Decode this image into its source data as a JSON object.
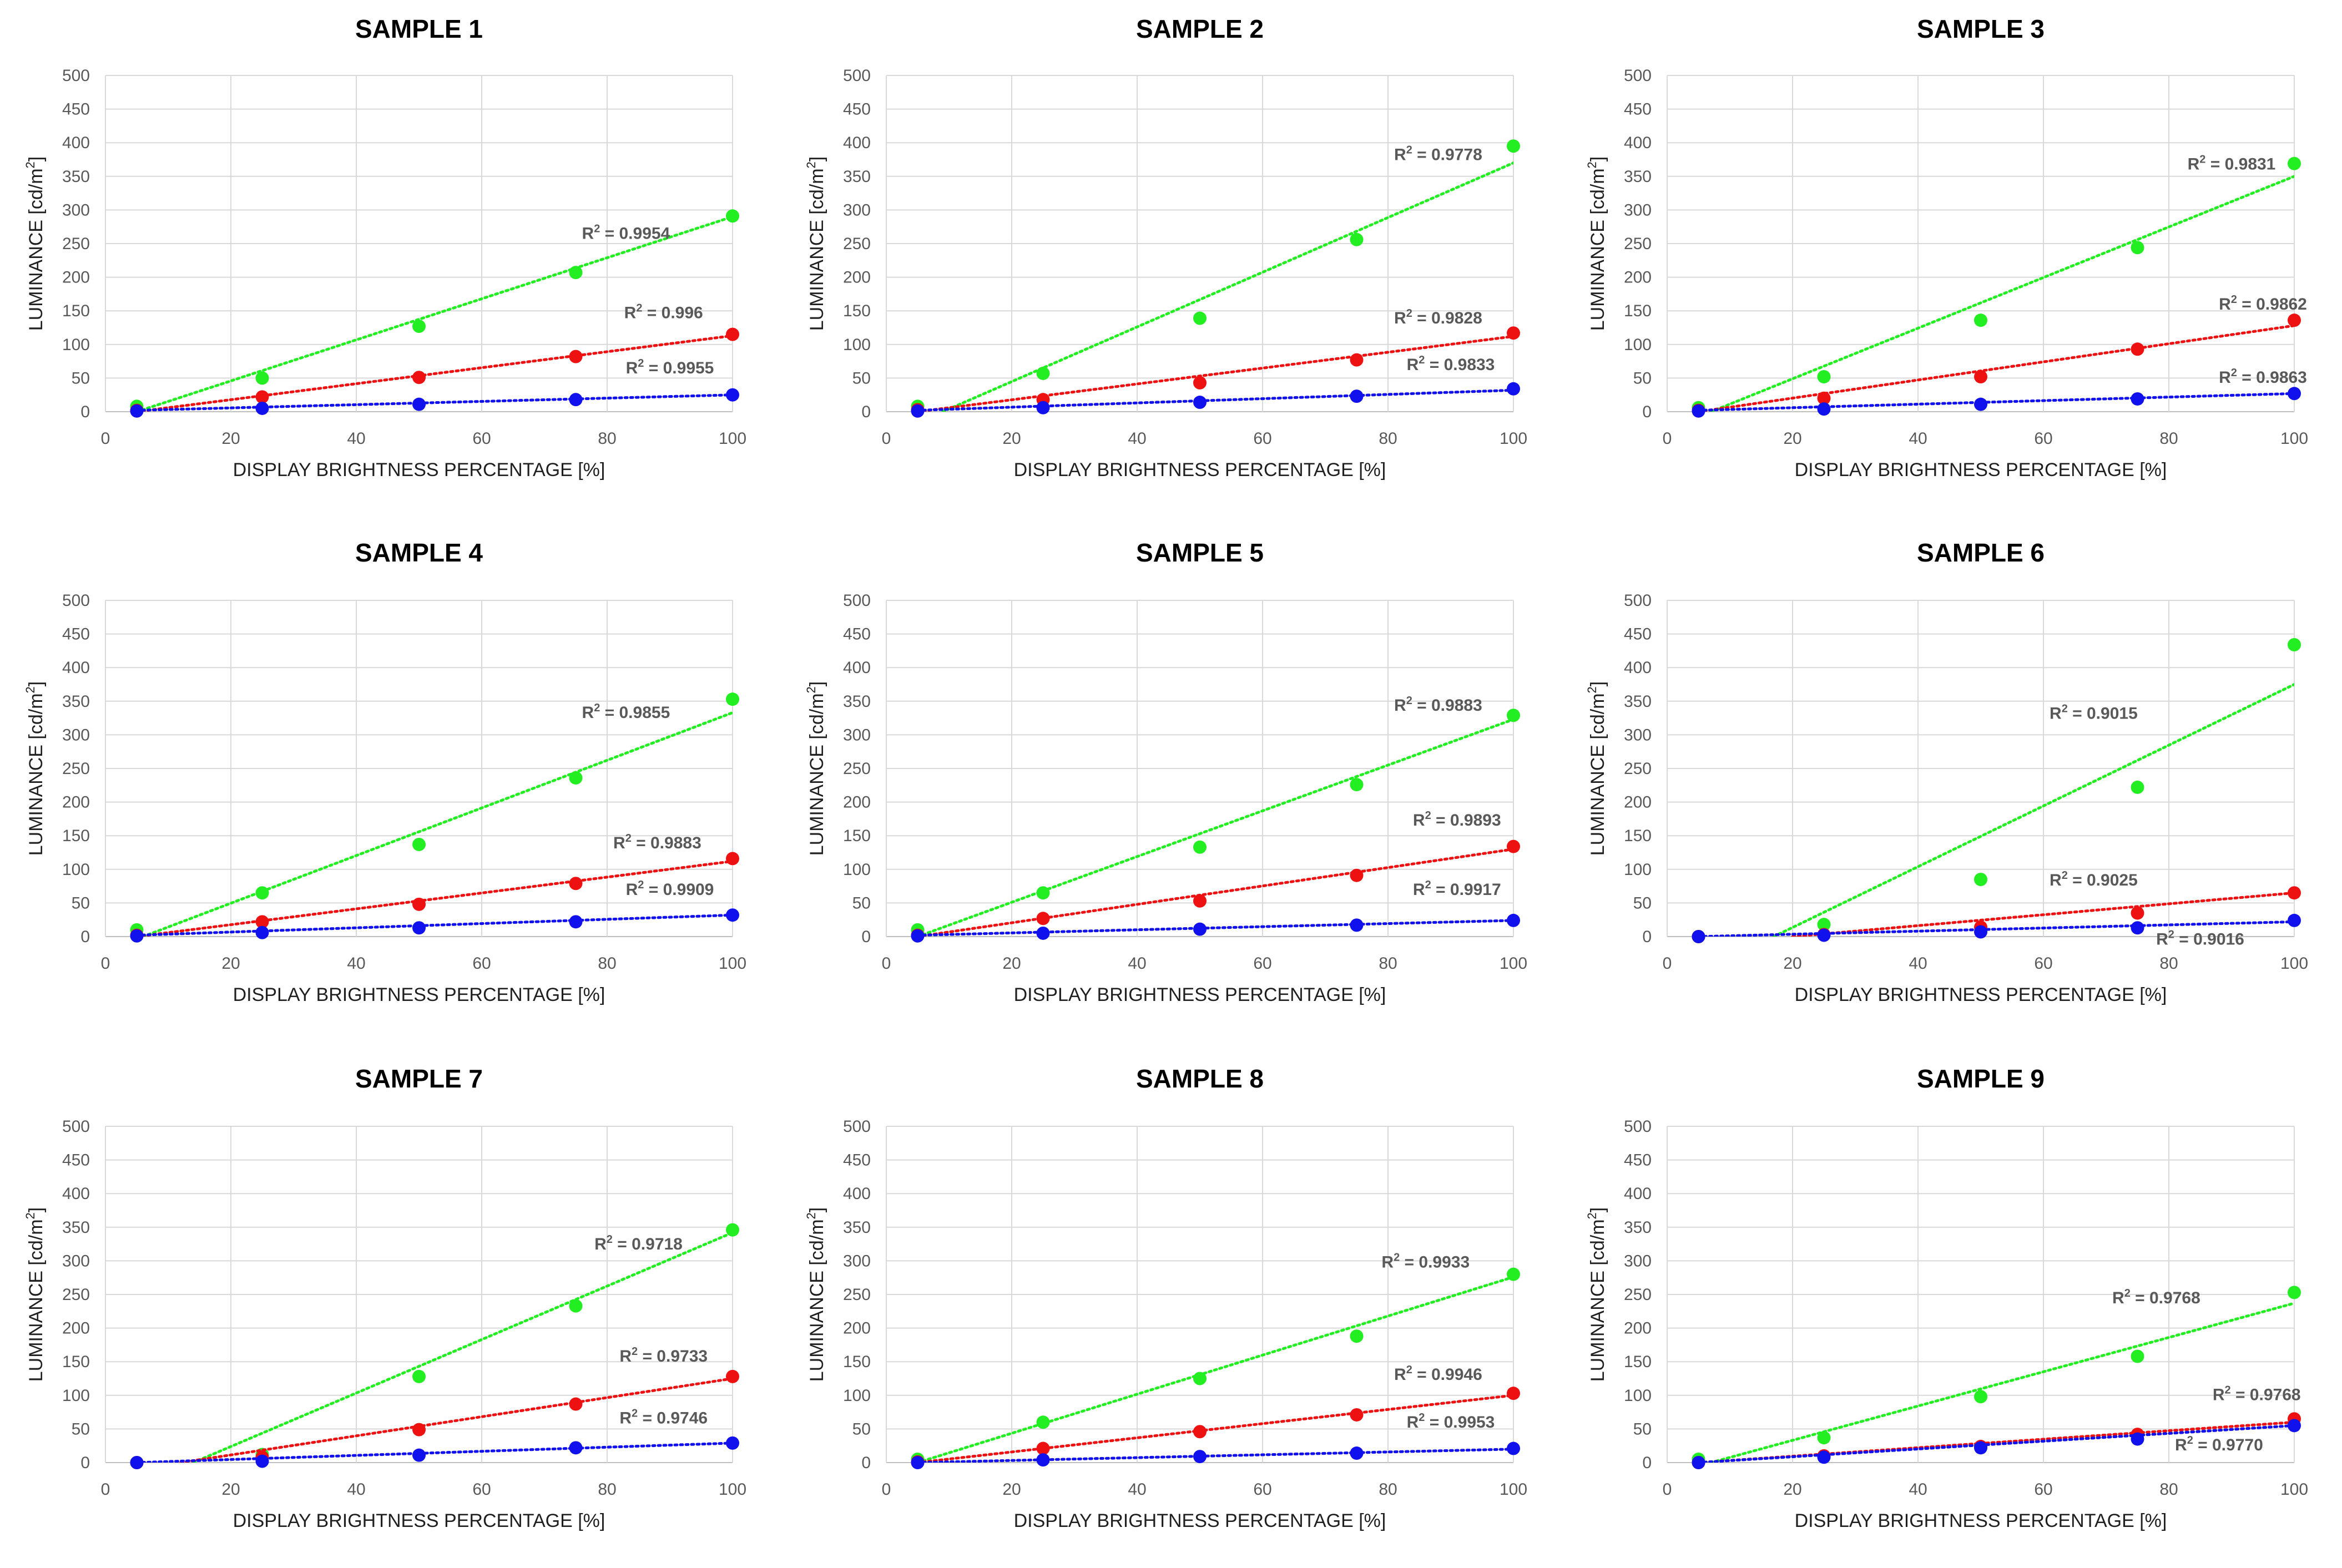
{
  "figure": {
    "xlabel": "DISPLAY BRIGHTNESS PERCENTAGE [%]",
    "ylabel_main": "LUMINANCE [cd/m",
    "ylabel_sup": "2",
    "ylabel_close": "]",
    "r2_prefix": "R",
    "r2_sup": "2",
    "r2_sep": " = ",
    "colors": {
      "green": "#22ee22",
      "red": "#ee1111",
      "blue": "#1111ee",
      "grid": "#d9d9d9"
    }
  },
  "chart_data": [
    {
      "type": "scatter",
      "title": "SAMPLE 1",
      "xlim": [
        0,
        100
      ],
      "ylim": [
        0,
        500
      ],
      "xticks": [
        0,
        20,
        40,
        60,
        80,
        100
      ],
      "yticks": [
        0,
        50,
        100,
        150,
        200,
        250,
        300,
        350,
        400,
        450,
        500
      ],
      "x": [
        5,
        25,
        50,
        75,
        100
      ],
      "series": [
        {
          "name": "green",
          "color": "#22ee22",
          "values": [
            8,
            50,
            127,
            207,
            291
          ],
          "r2": "0.9954",
          "fit": [
            [
              5,
              0
            ],
            [
              100,
              290
            ]
          ],
          "r2_at": [
            83,
            257
          ]
        },
        {
          "name": "red",
          "color": "#ee1111",
          "values": [
            2,
            22,
            51,
            82,
            115
          ],
          "r2": "0.996",
          "fit": [
            [
              5,
              0
            ],
            [
              100,
              113
            ]
          ],
          "r2_at": [
            89,
            139
          ]
        },
        {
          "name": "blue",
          "color": "#1111ee",
          "values": [
            1,
            5,
            11,
            18,
            25
          ],
          "r2": "0.9955",
          "fit": [
            [
              5,
              2
            ],
            [
              100,
              25
            ]
          ],
          "r2_at": [
            90,
            57
          ]
        }
      ]
    },
    {
      "type": "scatter",
      "title": "SAMPLE 2",
      "xlim": [
        0,
        100
      ],
      "ylim": [
        0,
        500
      ],
      "xticks": [
        0,
        20,
        40,
        60,
        80,
        100
      ],
      "yticks": [
        0,
        50,
        100,
        150,
        200,
        250,
        300,
        350,
        400,
        450,
        500
      ],
      "x": [
        5,
        25,
        50,
        75,
        100
      ],
      "series": [
        {
          "name": "green",
          "color": "#22ee22",
          "values": [
            8,
            57,
            139,
            256,
            395
          ],
          "r2": "0.9778",
          "fit": [
            [
              9,
              0
            ],
            [
              100,
              370
            ]
          ],
          "r2_at": [
            88,
            374
          ]
        },
        {
          "name": "red",
          "color": "#ee1111",
          "values": [
            3,
            18,
            43,
            77,
            117
          ],
          "r2": "0.9828",
          "fit": [
            [
              5,
              0
            ],
            [
              100,
              112
            ]
          ],
          "r2_at": [
            88,
            131
          ]
        },
        {
          "name": "blue",
          "color": "#1111ee",
          "values": [
            1,
            6,
            14,
            23,
            34
          ],
          "r2": "0.9833",
          "fit": [
            [
              5,
              2
            ],
            [
              100,
              32
            ]
          ],
          "r2_at": [
            90,
            62
          ]
        }
      ]
    },
    {
      "type": "scatter",
      "title": "SAMPLE 3",
      "xlim": [
        0,
        100
      ],
      "ylim": [
        0,
        500
      ],
      "xticks": [
        0,
        20,
        40,
        60,
        80,
        100
      ],
      "yticks": [
        0,
        50,
        100,
        150,
        200,
        250,
        300,
        350,
        400,
        450,
        500
      ],
      "x": [
        5,
        25,
        50,
        75,
        100
      ],
      "series": [
        {
          "name": "green",
          "color": "#22ee22",
          "values": [
            6,
            52,
            136,
            244,
            369
          ],
          "r2": "0.9831",
          "fit": [
            [
              7,
              0
            ],
            [
              100,
              350
            ]
          ],
          "r2_at": [
            90,
            360
          ]
        },
        {
          "name": "red",
          "color": "#ee1111",
          "values": [
            2,
            20,
            52,
            93,
            136
          ],
          "r2": "0.9862",
          "fit": [
            [
              5,
              0
            ],
            [
              100,
              128
            ]
          ],
          "r2_at": [
            95,
            152
          ]
        },
        {
          "name": "blue",
          "color": "#1111ee",
          "values": [
            1,
            4,
            11,
            19,
            27
          ],
          "r2": "0.9863",
          "fit": [
            [
              5,
              2
            ],
            [
              100,
              27
            ]
          ],
          "r2_at": [
            95,
            43
          ]
        }
      ]
    },
    {
      "type": "scatter",
      "title": "SAMPLE 4",
      "xlim": [
        0,
        100
      ],
      "ylim": [
        0,
        500
      ],
      "xticks": [
        0,
        20,
        40,
        60,
        80,
        100
      ],
      "yticks": [
        0,
        50,
        100,
        150,
        200,
        250,
        300,
        350,
        400,
        450,
        500
      ],
      "x": [
        5,
        25,
        50,
        75,
        100
      ],
      "series": [
        {
          "name": "green",
          "color": "#22ee22",
          "values": [
            10,
            65,
            137,
            236,
            353
          ],
          "r2": "0.9855",
          "fit": [
            [
              6,
              0
            ],
            [
              100,
              333
            ]
          ],
          "r2_at": [
            83,
            325
          ]
        },
        {
          "name": "red",
          "color": "#ee1111",
          "values": [
            2,
            22,
            48,
            79,
            116
          ],
          "r2": "0.9883",
          "fit": [
            [
              5,
              0
            ],
            [
              100,
              112
            ]
          ],
          "r2_at": [
            88,
            131
          ]
        },
        {
          "name": "blue",
          "color": "#1111ee",
          "values": [
            1,
            6,
            13,
            22,
            32
          ],
          "r2": "0.9909",
          "fit": [
            [
              5,
              2
            ],
            [
              100,
              32
            ]
          ],
          "r2_at": [
            90,
            62
          ]
        }
      ]
    },
    {
      "type": "scatter",
      "title": "SAMPLE 5",
      "xlim": [
        0,
        100
      ],
      "ylim": [
        0,
        500
      ],
      "xticks": [
        0,
        20,
        40,
        60,
        80,
        100
      ],
      "yticks": [
        0,
        50,
        100,
        150,
        200,
        250,
        300,
        350,
        400,
        450,
        500
      ],
      "x": [
        5,
        25,
        50,
        75,
        100
      ],
      "series": [
        {
          "name": "green",
          "color": "#22ee22",
          "values": [
            10,
            65,
            133,
            226,
            329
          ],
          "r2": "0.9883",
          "fit": [
            [
              5,
              0
            ],
            [
              100,
              323
            ]
          ],
          "r2_at": [
            88,
            336
          ]
        },
        {
          "name": "red",
          "color": "#ee1111",
          "values": [
            2,
            27,
            53,
            91,
            134
          ],
          "r2": "0.9893",
          "fit": [
            [
              5,
              0
            ],
            [
              100,
              130
            ]
          ],
          "r2_at": [
            91,
            165
          ]
        },
        {
          "name": "blue",
          "color": "#1111ee",
          "values": [
            1,
            5,
            11,
            17,
            24
          ],
          "r2": "0.9917",
          "fit": [
            [
              5,
              2
            ],
            [
              100,
              24
            ]
          ],
          "r2_at": [
            91,
            62
          ]
        }
      ]
    },
    {
      "type": "scatter",
      "title": "SAMPLE 6",
      "xlim": [
        0,
        100
      ],
      "ylim": [
        0,
        500
      ],
      "xticks": [
        0,
        20,
        40,
        60,
        80,
        100
      ],
      "yticks": [
        0,
        50,
        100,
        150,
        200,
        250,
        300,
        350,
        400,
        450,
        500
      ],
      "x": [
        5,
        25,
        50,
        75,
        100
      ],
      "series": [
        {
          "name": "green",
          "color": "#22ee22",
          "values": [
            0,
            18,
            85,
            222,
            434
          ],
          "r2": "0.9015",
          "fit": [
            [
              17,
              0
            ],
            [
              100,
              375
            ]
          ],
          "r2_at": [
            68,
            324
          ]
        },
        {
          "name": "red",
          "color": "#ee1111",
          "values": [
            0,
            3,
            14,
            35,
            65
          ],
          "r2": "0.9025",
          "fit": [
            [
              20,
              0
            ],
            [
              100,
              65
            ]
          ],
          "r2_at": [
            68,
            76
          ]
        },
        {
          "name": "blue",
          "color": "#1111ee",
          "values": [
            0,
            2,
            7,
            13,
            24
          ],
          "r2": "0.9016",
          "fit": [
            [
              5,
              0
            ],
            [
              100,
              22
            ]
          ],
          "r2_at": [
            85,
            -12
          ]
        }
      ]
    },
    {
      "type": "scatter",
      "title": "SAMPLE 7",
      "xlim": [
        0,
        100
      ],
      "ylim": [
        0,
        500
      ],
      "xticks": [
        0,
        20,
        40,
        60,
        80,
        100
      ],
      "yticks": [
        0,
        50,
        100,
        150,
        200,
        250,
        300,
        350,
        400,
        450,
        500
      ],
      "x": [
        5,
        25,
        50,
        75,
        100
      ],
      "series": [
        {
          "name": "green",
          "color": "#22ee22",
          "values": [
            0,
            12,
            128,
            233,
            346
          ],
          "r2": "0.9718",
          "fit": [
            [
              14,
              0
            ],
            [
              100,
              342
            ]
          ],
          "r2_at": [
            85,
            317
          ]
        },
        {
          "name": "red",
          "color": "#ee1111",
          "values": [
            0,
            8,
            49,
            87,
            128
          ],
          "r2": "0.9733",
          "fit": [
            [
              12,
              0
            ],
            [
              100,
              125
            ]
          ],
          "r2_at": [
            89,
            150
          ]
        },
        {
          "name": "blue",
          "color": "#1111ee",
          "values": [
            0,
            2,
            11,
            22,
            29
          ],
          "r2": "0.9746",
          "fit": [
            [
              5,
              0
            ],
            [
              100,
              29
            ]
          ],
          "r2_at": [
            89,
            58
          ]
        }
      ]
    },
    {
      "type": "scatter",
      "title": "SAMPLE 8",
      "xlim": [
        0,
        100
      ],
      "ylim": [
        0,
        500
      ],
      "xticks": [
        0,
        20,
        40,
        60,
        80,
        100
      ],
      "yticks": [
        0,
        50,
        100,
        150,
        200,
        250,
        300,
        350,
        400,
        450,
        500
      ],
      "x": [
        5,
        25,
        50,
        75,
        100
      ],
      "series": [
        {
          "name": "green",
          "color": "#22ee22",
          "values": [
            5,
            60,
            125,
            188,
            280
          ],
          "r2": "0.9933",
          "fit": [
            [
              5,
              0
            ],
            [
              100,
              276
            ]
          ],
          "r2_at": [
            86,
            290
          ]
        },
        {
          "name": "red",
          "color": "#ee1111",
          "values": [
            1,
            21,
            46,
            71,
            103
          ],
          "r2": "0.9946",
          "fit": [
            [
              5,
              0
            ],
            [
              100,
              100
            ]
          ],
          "r2_at": [
            88,
            123
          ]
        },
        {
          "name": "blue",
          "color": "#1111ee",
          "values": [
            0,
            4,
            9,
            14,
            21
          ],
          "r2": "0.9953",
          "fit": [
            [
              5,
              0
            ],
            [
              100,
              20
            ]
          ],
          "r2_at": [
            90,
            52
          ]
        }
      ]
    },
    {
      "type": "scatter",
      "title": "SAMPLE 9",
      "xlim": [
        0,
        100
      ],
      "ylim": [
        0,
        500
      ],
      "xticks": [
        0,
        20,
        40,
        60,
        80,
        100
      ],
      "yticks": [
        0,
        50,
        100,
        150,
        200,
        250,
        300,
        350,
        400,
        450,
        500
      ],
      "x": [
        5,
        25,
        50,
        75,
        100
      ],
      "series": [
        {
          "name": "green",
          "color": "#22ee22",
          "values": [
            5,
            37,
            98,
            158,
            253
          ],
          "r2": "0.9768",
          "fit": [
            [
              7,
              0
            ],
            [
              100,
              237
            ]
          ],
          "r2_at": [
            78,
            237
          ]
        },
        {
          "name": "red",
          "color": "#ee1111",
          "values": [
            0,
            10,
            24,
            42,
            65
          ],
          "r2": "0.9768",
          "fit": [
            [
              5,
              0
            ],
            [
              100,
              60
            ]
          ],
          "r2_at": [
            94,
            93
          ]
        },
        {
          "name": "blue",
          "color": "#1111ee",
          "values": [
            0,
            8,
            22,
            35,
            55
          ],
          "r2": "0.9770",
          "fit": [
            [
              5,
              0
            ],
            [
              100,
              55
            ]
          ],
          "r2_at": [
            88,
            18
          ]
        }
      ]
    }
  ]
}
